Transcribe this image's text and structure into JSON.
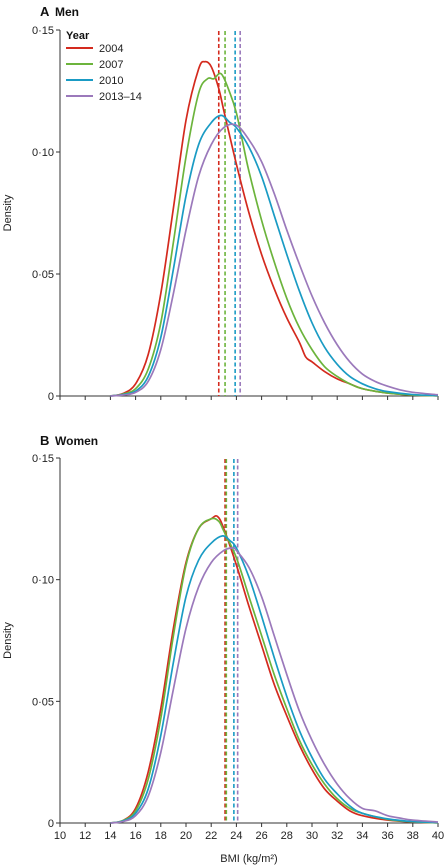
{
  "colors": {
    "2004": "#d42a1e",
    "2007": "#6cb43c",
    "2010": "#1a9bc4",
    "2013-14": "#9b79bb"
  },
  "chart_data": [
    {
      "type": "line",
      "panel": "A",
      "title": "Men",
      "xlabel": "",
      "ylabel": "Density",
      "xlim": [
        10,
        40
      ],
      "ylim": [
        0,
        0.15
      ],
      "xticks": [
        10,
        12,
        14,
        16,
        18,
        20,
        22,
        24,
        26,
        28,
        30,
        32,
        34,
        36,
        38,
        40
      ],
      "xtick_labels": [],
      "yticks": [
        0,
        0.05,
        0.1,
        0.15
      ],
      "ytick_labels": [
        "0",
        "0·05",
        "0·10",
        "0·15"
      ],
      "legend_title": "Year",
      "legend_position": "top-left",
      "series": [
        {
          "name": "2004",
          "color": "#d42a1e",
          "median": 22.6,
          "points": [
            [
              14,
              0
            ],
            [
              15,
              0.001
            ],
            [
              16,
              0.005
            ],
            [
              17,
              0.017
            ],
            [
              18,
              0.042
            ],
            [
              19,
              0.077
            ],
            [
              20,
              0.113
            ],
            [
              21,
              0.134
            ],
            [
              21.5,
              0.137
            ],
            [
              22,
              0.135
            ],
            [
              22.6,
              0.126
            ],
            [
              23,
              0.117
            ],
            [
              24,
              0.095
            ],
            [
              25,
              0.075
            ],
            [
              26,
              0.058
            ],
            [
              27,
              0.044
            ],
            [
              28,
              0.032
            ],
            [
              29,
              0.022
            ],
            [
              29.5,
              0.016
            ],
            [
              30,
              0.014
            ],
            [
              31,
              0.01
            ],
            [
              32,
              0.007
            ],
            [
              33,
              0.005
            ],
            [
              34,
              0.003
            ],
            [
              36,
              0.0012
            ],
            [
              38,
              0.0004
            ],
            [
              40,
              0.0001
            ]
          ]
        },
        {
          "name": "2007",
          "color": "#6cb43c",
          "median": 23.1,
          "points": [
            [
              14,
              0
            ],
            [
              15,
              0.0008
            ],
            [
              16,
              0.003
            ],
            [
              17,
              0.011
            ],
            [
              18,
              0.03
            ],
            [
              19,
              0.063
            ],
            [
              20,
              0.098
            ],
            [
              21,
              0.124
            ],
            [
              21.7,
              0.13
            ],
            [
              22.2,
              0.13
            ],
            [
              22.8,
              0.132
            ],
            [
              23.5,
              0.124
            ],
            [
              24,
              0.116
            ],
            [
              24.5,
              0.104
            ],
            [
              25,
              0.092
            ],
            [
              26,
              0.072
            ],
            [
              27,
              0.055
            ],
            [
              28,
              0.04
            ],
            [
              29,
              0.028
            ],
            [
              30,
              0.019
            ],
            [
              31,
              0.012
            ],
            [
              32,
              0.008
            ],
            [
              33,
              0.005
            ],
            [
              34,
              0.003
            ],
            [
              36,
              0.0012
            ],
            [
              38,
              0.0004
            ],
            [
              40,
              0.0001
            ]
          ]
        },
        {
          "name": "2010",
          "color": "#1a9bc4",
          "median": 23.9,
          "points": [
            [
              14,
              0
            ],
            [
              15,
              0.0006
            ],
            [
              16,
              0.002
            ],
            [
              17,
              0.008
            ],
            [
              18,
              0.024
            ],
            [
              19,
              0.052
            ],
            [
              20,
              0.082
            ],
            [
              21,
              0.103
            ],
            [
              22,
              0.112
            ],
            [
              22.8,
              0.115
            ],
            [
              23.5,
              0.112
            ],
            [
              24,
              0.11
            ],
            [
              25,
              0.102
            ],
            [
              26,
              0.09
            ],
            [
              27,
              0.074
            ],
            [
              28,
              0.058
            ],
            [
              29,
              0.043
            ],
            [
              30,
              0.03
            ],
            [
              31,
              0.02
            ],
            [
              32,
              0.013
            ],
            [
              33,
              0.008
            ],
            [
              34,
              0.005
            ],
            [
              35,
              0.003
            ],
            [
              36,
              0.0018
            ],
            [
              38,
              0.0006
            ],
            [
              40,
              0.0002
            ]
          ]
        },
        {
          "name": "2013–14",
          "color": "#9b79bb",
          "median": 24.3,
          "points": [
            [
              14,
              0
            ],
            [
              15,
              0.0004
            ],
            [
              16,
              0.0015
            ],
            [
              17,
              0.006
            ],
            [
              18,
              0.019
            ],
            [
              19,
              0.042
            ],
            [
              20,
              0.068
            ],
            [
              21,
              0.09
            ],
            [
              22,
              0.103
            ],
            [
              23,
              0.11
            ],
            [
              24,
              0.111
            ],
            [
              25,
              0.105
            ],
            [
              26,
              0.096
            ],
            [
              27,
              0.083
            ],
            [
              28,
              0.068
            ],
            [
              29,
              0.054
            ],
            [
              30,
              0.041
            ],
            [
              31,
              0.03
            ],
            [
              32,
              0.021
            ],
            [
              33,
              0.014
            ],
            [
              34,
              0.009
            ],
            [
              35,
              0.006
            ],
            [
              36,
              0.004
            ],
            [
              37,
              0.0025
            ],
            [
              38,
              0.0015
            ],
            [
              40,
              0.0005
            ]
          ]
        }
      ]
    },
    {
      "type": "line",
      "panel": "B",
      "title": "Women",
      "xlabel": "BMI (kg/m²)",
      "ylabel": "Density",
      "xlim": [
        10,
        40
      ],
      "ylim": [
        0,
        0.15
      ],
      "xticks": [
        10,
        12,
        14,
        16,
        18,
        20,
        22,
        24,
        26,
        28,
        30,
        32,
        34,
        36,
        38,
        40
      ],
      "xtick_labels": [
        "10",
        "12",
        "14",
        "16",
        "18",
        "20",
        "22",
        "24",
        "26",
        "28",
        "30",
        "32",
        "34",
        "36",
        "38",
        "40"
      ],
      "yticks": [
        0,
        0.05,
        0.1,
        0.15
      ],
      "ytick_labels": [
        "0",
        "0·05",
        "0·10",
        "0·15"
      ],
      "series": [
        {
          "name": "2004",
          "color": "#d42a1e",
          "median": 23.1,
          "points": [
            [
              14,
              0
            ],
            [
              15,
              0.001
            ],
            [
              16,
              0.006
            ],
            [
              17,
              0.021
            ],
            [
              18,
              0.047
            ],
            [
              19,
              0.08
            ],
            [
              20,
              0.107
            ],
            [
              21,
              0.121
            ],
            [
              22,
              0.125
            ],
            [
              22.5,
              0.126
            ],
            [
              23,
              0.121
            ],
            [
              24,
              0.106
            ],
            [
              25,
              0.089
            ],
            [
              26,
              0.073
            ],
            [
              27,
              0.057
            ],
            [
              28,
              0.044
            ],
            [
              29,
              0.032
            ],
            [
              30,
              0.022
            ],
            [
              31,
              0.014
            ],
            [
              32,
              0.009
            ],
            [
              33,
              0.005
            ],
            [
              34,
              0.003
            ],
            [
              36,
              0.0012
            ],
            [
              38,
              0.0004
            ],
            [
              40,
              0.0001
            ]
          ]
        },
        {
          "name": "2007",
          "color": "#6cb43c",
          "median": 23.2,
          "points": [
            [
              14,
              0
            ],
            [
              15,
              0.001
            ],
            [
              16,
              0.005
            ],
            [
              17,
              0.018
            ],
            [
              18,
              0.043
            ],
            [
              19,
              0.077
            ],
            [
              20,
              0.106
            ],
            [
              21,
              0.121
            ],
            [
              22,
              0.125
            ],
            [
              22.6,
              0.124
            ],
            [
              23,
              0.12
            ],
            [
              24,
              0.109
            ],
            [
              25,
              0.093
            ],
            [
              26,
              0.077
            ],
            [
              27,
              0.061
            ],
            [
              28,
              0.047
            ],
            [
              29,
              0.034
            ],
            [
              30,
              0.024
            ],
            [
              31,
              0.016
            ],
            [
              32,
              0.01
            ],
            [
              33,
              0.006
            ],
            [
              34,
              0.004
            ],
            [
              36,
              0.0015
            ],
            [
              38,
              0.0005
            ],
            [
              40,
              0.0001
            ]
          ]
        },
        {
          "name": "2010",
          "color": "#1a9bc4",
          "median": 23.8,
          "points": [
            [
              14,
              0
            ],
            [
              15,
              0.0008
            ],
            [
              16,
              0.004
            ],
            [
              17,
              0.014
            ],
            [
              18,
              0.036
            ],
            [
              19,
              0.066
            ],
            [
              20,
              0.093
            ],
            [
              21,
              0.108
            ],
            [
              22,
              0.115
            ],
            [
              22.9,
              0.118
            ],
            [
              23.5,
              0.116
            ],
            [
              24,
              0.113
            ],
            [
              25,
              0.101
            ],
            [
              26,
              0.085
            ],
            [
              27,
              0.068
            ],
            [
              28,
              0.052
            ],
            [
              29,
              0.038
            ],
            [
              30,
              0.027
            ],
            [
              31,
              0.018
            ],
            [
              32,
              0.012
            ],
            [
              33,
              0.007
            ],
            [
              34,
              0.004
            ],
            [
              36,
              0.0017
            ],
            [
              38,
              0.0006
            ],
            [
              40,
              0.0002
            ]
          ]
        },
        {
          "name": "2013–14",
          "color": "#9b79bb",
          "median": 24.1,
          "points": [
            [
              14,
              0
            ],
            [
              15,
              0.0006
            ],
            [
              16,
              0.003
            ],
            [
              17,
              0.011
            ],
            [
              18,
              0.029
            ],
            [
              19,
              0.055
            ],
            [
              20,
              0.08
            ],
            [
              21,
              0.097
            ],
            [
              22,
              0.107
            ],
            [
              23,
              0.112
            ],
            [
              23.7,
              0.113
            ],
            [
              24,
              0.112
            ],
            [
              25,
              0.105
            ],
            [
              26,
              0.093
            ],
            [
              27,
              0.077
            ],
            [
              28,
              0.061
            ],
            [
              29,
              0.046
            ],
            [
              30,
              0.034
            ],
            [
              31,
              0.024
            ],
            [
              32,
              0.016
            ],
            [
              33,
              0.01
            ],
            [
              34,
              0.006
            ],
            [
              35,
              0.005
            ],
            [
              36,
              0.003
            ],
            [
              37,
              0.002
            ],
            [
              38,
              0.0012
            ],
            [
              40,
              0.0004
            ]
          ]
        }
      ]
    }
  ]
}
